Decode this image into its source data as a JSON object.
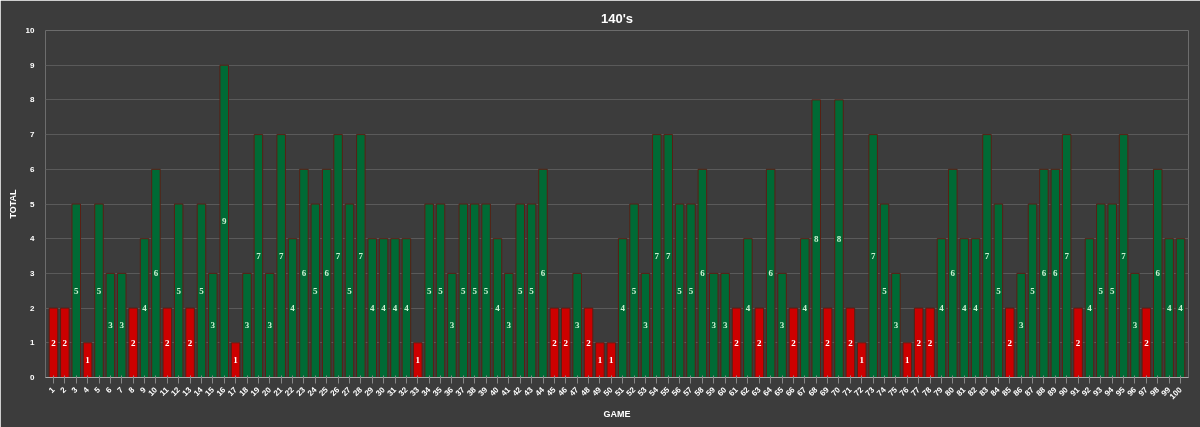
{
  "chart_data": {
    "type": "bar",
    "title": "140's",
    "xlabel": "GAME",
    "ylabel": "TOTAL",
    "categories": [
      "1",
      "2",
      "3",
      "4",
      "5",
      "6",
      "7",
      "8",
      "9",
      "10",
      "11",
      "12",
      "13",
      "14",
      "15",
      "16",
      "17",
      "18",
      "19",
      "20",
      "21",
      "22",
      "23",
      "24",
      "25",
      "26",
      "27",
      "28",
      "29",
      "30",
      "31",
      "32",
      "33",
      "34",
      "35",
      "36",
      "37",
      "38",
      "39",
      "40",
      "41",
      "42",
      "43",
      "44",
      "45",
      "46",
      "47",
      "48",
      "49",
      "50",
      "51",
      "52",
      "53",
      "54",
      "55",
      "56",
      "57",
      "58",
      "59",
      "60",
      "61",
      "62",
      "63",
      "64",
      "65",
      "66",
      "67",
      "68",
      "69",
      "70",
      "71",
      "72",
      "73",
      "74",
      "75",
      "76",
      "77",
      "78",
      "79",
      "80",
      "81",
      "82",
      "83",
      "84",
      "85",
      "86",
      "87",
      "88",
      "89",
      "90",
      "91",
      "92",
      "93",
      "94",
      "95",
      "96",
      "97",
      "98",
      "99",
      "100"
    ],
    "values": [
      2,
      2,
      5,
      1,
      5,
      3,
      3,
      2,
      4,
      6,
      2,
      5,
      2,
      5,
      3,
      9,
      1,
      3,
      7,
      3,
      7,
      4,
      6,
      5,
      6,
      7,
      5,
      7,
      4,
      4,
      4,
      4,
      1,
      5,
      5,
      3,
      5,
      5,
      5,
      4,
      3,
      5,
      5,
      6,
      2,
      2,
      3,
      2,
      1,
      1,
      4,
      5,
      3,
      7,
      7,
      5,
      5,
      6,
      3,
      3,
      2,
      4,
      2,
      6,
      3,
      2,
      4,
      8,
      2,
      8,
      2,
      1,
      7,
      5,
      3,
      1,
      2,
      2,
      4,
      6,
      4,
      4,
      7,
      5,
      2,
      3,
      5,
      6,
      6,
      7,
      2,
      4,
      5,
      5,
      7,
      3,
      2,
      6,
      4,
      4
    ],
    "colors": [
      "#cc0000",
      "#cc0000",
      "#006a35",
      "#cc0000",
      "#006a35",
      "#006a35",
      "#006a35",
      "#cc0000",
      "#006a35",
      "#006a35",
      "#cc0000",
      "#006a35",
      "#cc0000",
      "#006a35",
      "#006a35",
      "#006a35",
      "#cc0000",
      "#006a35",
      "#006a35",
      "#006a35",
      "#006a35",
      "#006a35",
      "#006a35",
      "#006a35",
      "#006a35",
      "#006a35",
      "#006a35",
      "#006a35",
      "#006a35",
      "#006a35",
      "#006a35",
      "#006a35",
      "#cc0000",
      "#006a35",
      "#006a35",
      "#006a35",
      "#006a35",
      "#006a35",
      "#006a35",
      "#006a35",
      "#006a35",
      "#006a35",
      "#006a35",
      "#006a35",
      "#cc0000",
      "#cc0000",
      "#006a35",
      "#cc0000",
      "#cc0000",
      "#cc0000",
      "#006a35",
      "#006a35",
      "#006a35",
      "#006a35",
      "#006a35",
      "#006a35",
      "#006a35",
      "#006a35",
      "#006a35",
      "#006a35",
      "#cc0000",
      "#006a35",
      "#cc0000",
      "#006a35",
      "#006a35",
      "#cc0000",
      "#006a35",
      "#006a35",
      "#cc0000",
      "#006a35",
      "#cc0000",
      "#cc0000",
      "#006a35",
      "#006a35",
      "#006a35",
      "#cc0000",
      "#cc0000",
      "#cc0000",
      "#006a35",
      "#006a35",
      "#006a35",
      "#006a35",
      "#006a35",
      "#006a35",
      "#cc0000",
      "#006a35",
      "#006a35",
      "#006a35",
      "#006a35",
      "#006a35",
      "#cc0000",
      "#006a35",
      "#006a35",
      "#006a35",
      "#006a35",
      "#006a35",
      "#cc0000",
      "#006a35",
      "#006a35",
      "#006a35"
    ],
    "ylim": [
      0,
      10
    ],
    "yticks": [
      0,
      1,
      2,
      3,
      4,
      5,
      6,
      7,
      8,
      9,
      10
    ],
    "grid": "y",
    "data_labels": true
  }
}
